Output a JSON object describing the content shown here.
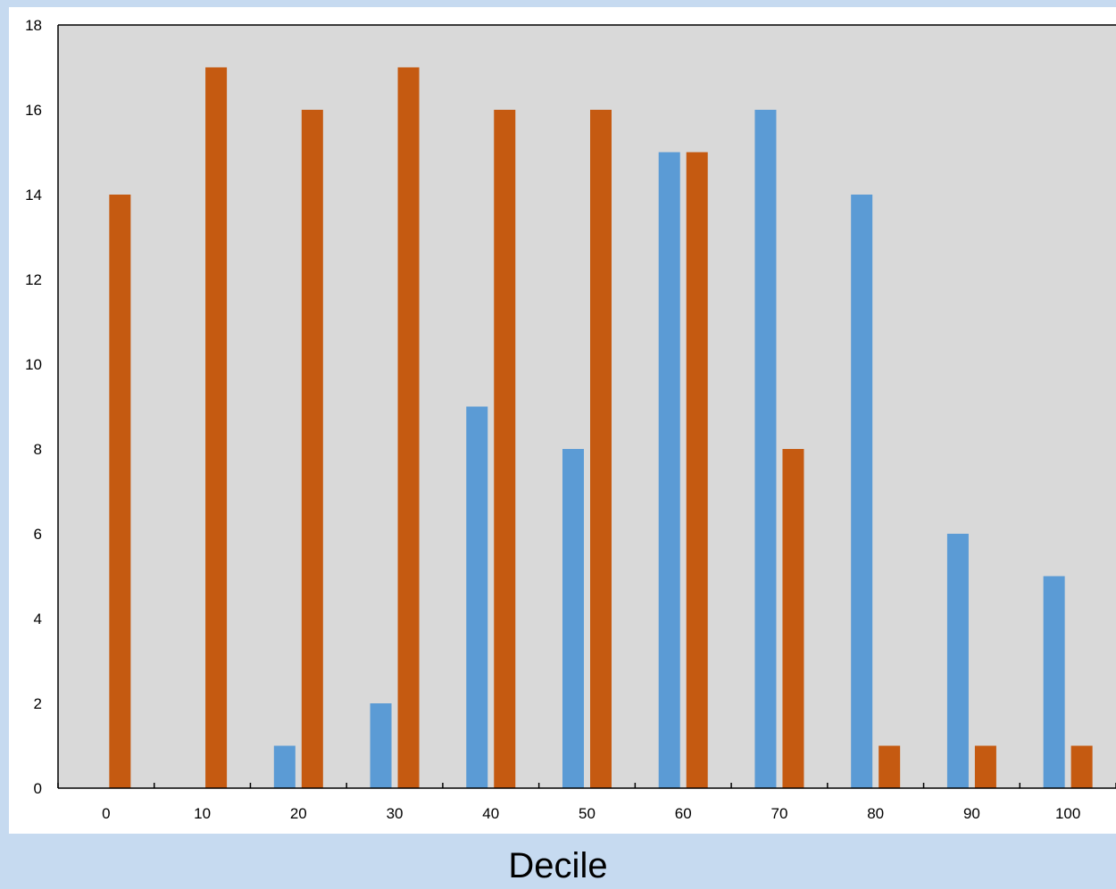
{
  "chart_data": {
    "type": "bar",
    "xlabel": "Decile",
    "ylabel": "",
    "title": "",
    "ylim": [
      0,
      18
    ],
    "yticks": [
      0,
      2,
      4,
      6,
      8,
      10,
      12,
      14,
      16,
      18
    ],
    "categories": [
      "0",
      "10",
      "20",
      "30",
      "40",
      "50",
      "60",
      "70",
      "80",
      "90",
      "100"
    ],
    "series": [
      {
        "color": "#5b9bd5",
        "values": [
          0,
          0,
          1,
          2,
          9,
          8,
          15,
          16,
          14,
          6,
          5
        ]
      },
      {
        "color": "#c55a11",
        "values": [
          14,
          17,
          16,
          17,
          16,
          16,
          15,
          8,
          1,
          1,
          1
        ]
      }
    ],
    "plot_background": "#d9d9d9",
    "grid": false,
    "legend": "none"
  }
}
